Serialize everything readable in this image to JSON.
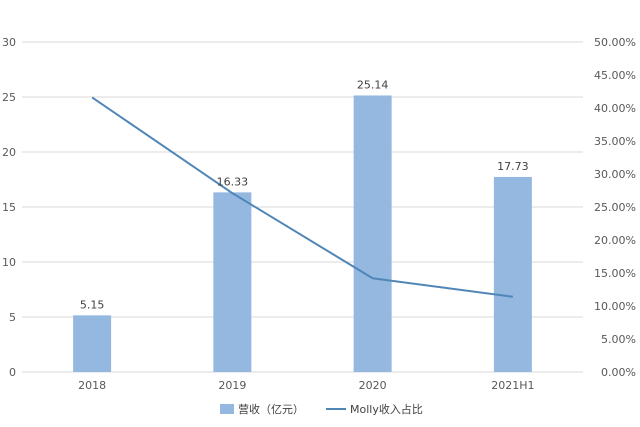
{
  "chart_data": {
    "type": "bar",
    "categories": [
      "2018",
      "2019",
      "2020",
      "2021H1"
    ],
    "series": [
      {
        "name": "营收（亿元）",
        "type": "bar",
        "axis": "left",
        "values": [
          5.15,
          16.33,
          25.14,
          17.73
        ],
        "labels": [
          "5.15",
          "16.33",
          "25.14",
          "17.73"
        ],
        "color": "#95b8e0"
      },
      {
        "name": "Molly收入占比",
        "type": "line",
        "axis": "right",
        "values": [
          41.6,
          27.1,
          14.2,
          11.4
        ],
        "color": "#4f86b7"
      }
    ],
    "ylim": [
      0,
      30
    ],
    "y_ticks": [
      "0",
      "5",
      "10",
      "15",
      "20",
      "25",
      "30"
    ],
    "y2lim": [
      0,
      50
    ],
    "y2_ticks": [
      "0.00%",
      "5.00%",
      "10.00%",
      "15.00%",
      "20.00%",
      "25.00%",
      "30.00%",
      "35.00%",
      "40.00%",
      "45.00%",
      "50.00%"
    ],
    "grid": true,
    "legend_position": "bottom",
    "gridline_color": "#d9d9d9",
    "axis_text_color": "#595959"
  }
}
